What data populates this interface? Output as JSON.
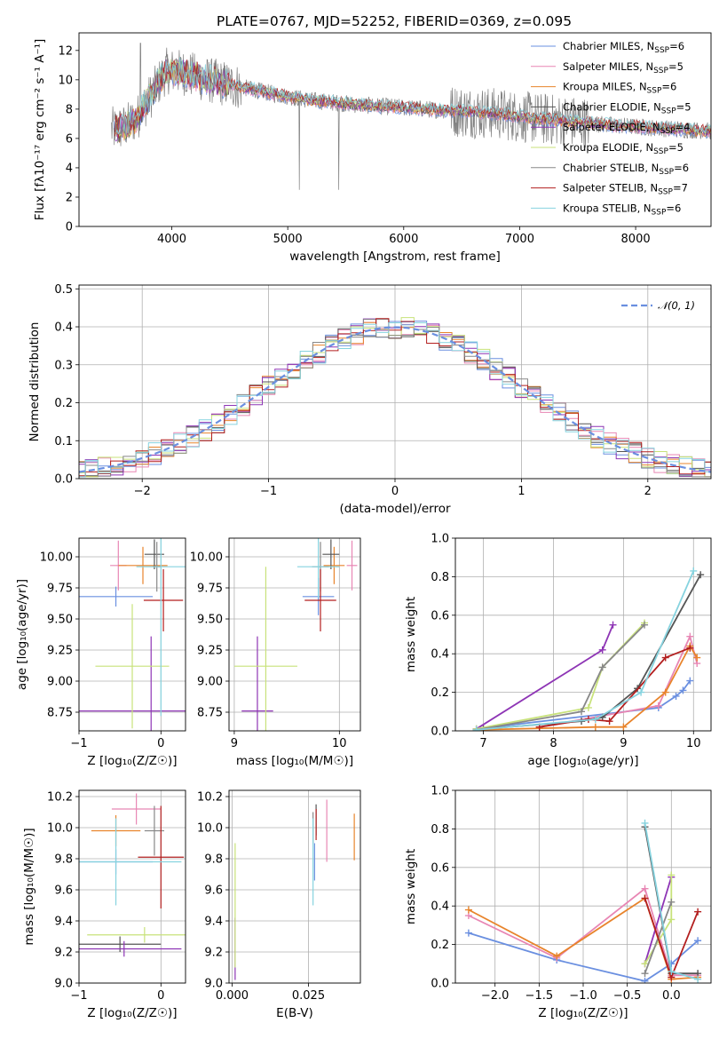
{
  "title": "PLATE=0767, MJD=52252, FIBERID=0369, z=0.095",
  "colors": [
    "#6a8fe0",
    "#e886b4",
    "#e8842c",
    "#555555",
    "#8e35b5",
    "#c8e27a",
    "#888888",
    "#b31f1f",
    "#86d3df"
  ],
  "chart_data": [
    {
      "id": "spectrum",
      "type": "line",
      "xlabel": "wavelength [Angstrom, rest frame]",
      "ylabel": "Flux [fλ10⁻¹⁷ erg cm⁻² s⁻¹ A⁻¹]",
      "xlim": [
        3200,
        8650
      ],
      "ylim": [
        0,
        13.2
      ],
      "xticks": [
        4000,
        5000,
        6000,
        7000,
        8000
      ],
      "yticks": [
        0,
        2,
        4,
        6,
        8,
        10,
        12
      ],
      "grid": false,
      "legend": "top-right",
      "series": [
        {
          "name": "Chabrier MILES, N_SSP=6"
        },
        {
          "name": "Salpeter MILES, N_SSP=5"
        },
        {
          "name": "Kroupa MILES, N_SSP=6"
        },
        {
          "name": "Chabrier ELODIE, N_SSP=5"
        },
        {
          "name": "Salpeter ELODIE, N_SSP=4"
        },
        {
          "name": "Kroupa ELODIE, N_SSP=5"
        },
        {
          "name": "Chabrier STELIB, N_SSP=6"
        },
        {
          "name": "Salpeter STELIB, N_SSP=7"
        },
        {
          "name": "Kroupa STELIB, N_SSP=6"
        }
      ],
      "continuum": {
        "x": [
          3500,
          3600,
          3700,
          3850,
          3950,
          4100,
          4300,
          4600,
          4900,
          5200,
          5600,
          6000,
          6400,
          6800,
          7100,
          7400,
          7800,
          8200,
          8650
        ],
        "y": [
          6.6,
          6.8,
          7.4,
          9.3,
          10.6,
          10.5,
          10.0,
          9.5,
          9.0,
          8.6,
          8.3,
          8.1,
          7.9,
          7.7,
          7.4,
          7.2,
          6.9,
          6.7,
          6.5
        ]
      }
    },
    {
      "id": "residuals",
      "type": "step",
      "xlabel": "(data-model)/error",
      "ylabel": "Normed distribution",
      "xlim": [
        -2.5,
        2.5
      ],
      "ylim": [
        0,
        0.51
      ],
      "xticks": [
        -2,
        -1,
        0,
        1,
        2
      ],
      "yticks": [
        0.0,
        0.1,
        0.2,
        0.3,
        0.4,
        0.5
      ],
      "grid": true,
      "legend": "top-right",
      "reference": {
        "name": "𝒩(0, 1)",
        "mean": 0,
        "sigma": 1
      }
    },
    {
      "id": "age-vs-Z",
      "type": "errorbar",
      "xlabel": "Z [log₁₀(Z/Z☉)]",
      "ylabel": "age  [log₁₀(age/yr)]",
      "xlim": [
        -1,
        0.3
      ],
      "ylim": [
        8.6,
        10.15
      ],
      "xticks": [
        -1,
        0
      ],
      "yticks": [
        8.75,
        9.0,
        9.25,
        9.5,
        9.75,
        10.0
      ],
      "points": [
        {
          "x": -0.55,
          "y": 9.68,
          "xerr": 0.45,
          "yerr": 0.08
        },
        {
          "x": -0.52,
          "y": 9.93,
          "xerr": 0.1,
          "yerr": 0.2
        },
        {
          "x": -0.22,
          "y": 9.93,
          "xerr": 0.3,
          "yerr": 0.15
        },
        {
          "x": -0.08,
          "y": 10.02,
          "xerr": 0.12,
          "yerr": 0.12
        },
        {
          "x": -0.12,
          "y": 8.76,
          "xerr": 0.88,
          "yerr": 0.6
        },
        {
          "x": -0.35,
          "y": 9.12,
          "xerr": 0.45,
          "yerr": 0.5
        },
        {
          "x": -0.05,
          "y": 9.92,
          "xerr": 0.05,
          "yerr": 0.2
        },
        {
          "x": 0.03,
          "y": 9.65,
          "xerr": 0.24,
          "yerr": 0.25
        },
        {
          "x": 0.0,
          "y": 9.92,
          "xerr": 0.3,
          "yerr": 1.2
        }
      ]
    },
    {
      "id": "age-vs-mass",
      "type": "errorbar",
      "xlabel": "mass [log₁₀(M/M☉)]",
      "ylabel": "",
      "xlim": [
        8.95,
        10.2
      ],
      "ylim": [
        8.6,
        10.15
      ],
      "xticks": [
        9,
        10
      ],
      "yticks": [
        8.75,
        9.0,
        9.25,
        9.5,
        9.75,
        10.0
      ],
      "points": [
        {
          "x": 9.8,
          "y": 9.68,
          "xerr": 0.15,
          "yerr": 0.15
        },
        {
          "x": 10.12,
          "y": 9.93,
          "xerr": 0.05,
          "yerr": 0.2
        },
        {
          "x": 9.95,
          "y": 9.93,
          "xerr": 0.1,
          "yerr": 0.15
        },
        {
          "x": 9.92,
          "y": 10.02,
          "xerr": 0.08,
          "yerr": 0.12
        },
        {
          "x": 9.22,
          "y": 8.76,
          "xerr": 0.15,
          "yerr": 0.6
        },
        {
          "x": 9.3,
          "y": 9.12,
          "xerr": 0.3,
          "yerr": 0.8
        },
        {
          "x": 9.82,
          "y": 9.92,
          "xerr": 0.08,
          "yerr": 0.2
        },
        {
          "x": 9.82,
          "y": 9.65,
          "xerr": 0.15,
          "yerr": 0.25
        },
        {
          "x": 9.8,
          "y": 9.92,
          "xerr": 0.2,
          "yerr": 0.25
        }
      ]
    },
    {
      "id": "mass-weight-vs-age",
      "type": "line",
      "xlabel": "age  [log₁₀(age/yr)]",
      "ylabel": "mass weight",
      "xlim": [
        6.6,
        10.25
      ],
      "ylim": [
        0,
        1.0
      ],
      "xticks": [
        7,
        8,
        9,
        10
      ],
      "yticks": [
        0.0,
        0.2,
        0.4,
        0.6,
        0.8,
        1.0
      ],
      "series": [
        {
          "x": [
            6.9,
            9.5,
            9.75,
            9.85,
            9.95
          ],
          "y": [
            0.01,
            0.12,
            0.18,
            0.21,
            0.26
          ]
        },
        {
          "x": [
            7.8,
            9.5,
            9.95,
            10.05
          ],
          "y": [
            0.02,
            0.13,
            0.49,
            0.35
          ]
        },
        {
          "x": [
            6.9,
            8.6,
            9.0,
            9.6,
            9.95,
            10.05
          ],
          "y": [
            0.005,
            0.02,
            0.02,
            0.2,
            0.44,
            0.38
          ]
        },
        {
          "x": [
            7.0,
            8.4,
            8.7,
            9.2,
            10.1
          ],
          "y": [
            0.01,
            0.05,
            0.07,
            0.22,
            0.81
          ]
        },
        {
          "x": [
            6.9,
            8.7,
            8.85
          ],
          "y": [
            0.01,
            0.42,
            0.55
          ]
        },
        {
          "x": [
            6.9,
            8.5,
            8.7,
            9.3
          ],
          "y": [
            0.01,
            0.12,
            0.33,
            0.56
          ]
        },
        {
          "x": [
            6.9,
            8.4,
            8.7,
            9.3
          ],
          "y": [
            0.005,
            0.1,
            0.33,
            0.55
          ]
        },
        {
          "x": [
            7.8,
            8.5,
            8.8,
            9.6,
            9.95
          ],
          "y": [
            0.02,
            0.06,
            0.05,
            0.38,
            0.43
          ]
        },
        {
          "x": [
            6.9,
            8.6,
            9.25,
            10.0
          ],
          "y": [
            0.005,
            0.06,
            0.2,
            0.83
          ]
        }
      ]
    },
    {
      "id": "mass-vs-Z",
      "type": "errorbar",
      "xlabel": "Z [log₁₀(Z/Z☉)]",
      "ylabel": "mass [log₁₀(M/M☉)]",
      "xlim": [
        -1,
        0.3
      ],
      "ylim": [
        9.0,
        10.24
      ],
      "xticks": [
        -1,
        0
      ],
      "yticks": [
        9.0,
        9.2,
        9.4,
        9.6,
        9.8,
        10.0,
        10.2
      ],
      "points": [
        {
          "x": -0.55,
          "y": 9.78,
          "xerr": 0.45,
          "yerr": 0.08
        },
        {
          "x": -0.3,
          "y": 10.12,
          "xerr": 0.3,
          "yerr": 0.1
        },
        {
          "x": -0.55,
          "y": 9.98,
          "xerr": 0.3,
          "yerr": 0.1
        },
        {
          "x": -0.5,
          "y": 9.25,
          "xerr": 0.5,
          "yerr": 0.05
        },
        {
          "x": -0.45,
          "y": 9.22,
          "xerr": 0.7,
          "yerr": 0.05
        },
        {
          "x": -0.2,
          "y": 9.31,
          "xerr": 0.7,
          "yerr": 0.05
        },
        {
          "x": -0.08,
          "y": 9.98,
          "xerr": 0.12,
          "yerr": 0.16
        },
        {
          "x": 0.0,
          "y": 9.81,
          "xerr": 0.28,
          "yerr": 0.33
        },
        {
          "x": -0.55,
          "y": 9.78,
          "xerr": 0.8,
          "yerr": 0.28
        }
      ]
    },
    {
      "id": "mass-vs-EBV",
      "type": "errorbar",
      "xlabel": "E(B-V)",
      "ylabel": "",
      "xlim": [
        -0.001,
        0.042
      ],
      "ylim": [
        9.0,
        10.24
      ],
      "xticks": [
        0.0,
        0.025
      ],
      "yticks": [
        9.0,
        9.2,
        9.4,
        9.6,
        9.8,
        10.0,
        10.2
      ],
      "points": [
        {
          "x": 0.027,
          "y": 9.78,
          "yerr": 0.12
        },
        {
          "x": 0.031,
          "y": 9.98,
          "yerr": 0.2
        },
        {
          "x": 0.04,
          "y": 9.94,
          "yerr": 0.15
        },
        {
          "x": 0.0275,
          "y": 10.05,
          "yerr": 0.1
        },
        {
          "x": 0.001,
          "y": 9.22,
          "yerr": 0.2
        },
        {
          "x": 0.001,
          "y": 9.5,
          "yerr": 0.4
        },
        {
          "x": 0.0265,
          "y": 10.0,
          "yerr": 0.1
        },
        {
          "x": 0.0275,
          "y": 10.02,
          "yerr": 0.1
        },
        {
          "x": 0.0265,
          "y": 9.78,
          "yerr": 0.28
        }
      ]
    },
    {
      "id": "mass-weight-vs-Z",
      "type": "line",
      "xlabel": "Z [log₁₀(Z/Z☉)]",
      "ylabel": "mass weight",
      "xlim": [
        -2.45,
        0.45
      ],
      "ylim": [
        0,
        1.0
      ],
      "xticks": [
        -2.0,
        -1.5,
        -1.0,
        -0.5,
        0.0
      ],
      "yticks": [
        0.0,
        0.2,
        0.4,
        0.6,
        0.8,
        1.0
      ],
      "series": [
        {
          "x": [
            -2.3,
            -1.3,
            -0.3,
            0.0,
            0.3
          ],
          "y": [
            0.26,
            0.12,
            0.01,
            0.1,
            0.22
          ]
        },
        {
          "x": [
            -2.3,
            -1.3,
            -0.3,
            0.0,
            0.3
          ],
          "y": [
            0.35,
            0.13,
            0.49,
            0.04,
            0.04
          ]
        },
        {
          "x": [
            -2.3,
            -1.3,
            -0.3,
            0.0,
            0.3
          ],
          "y": [
            0.38,
            0.14,
            0.44,
            0.02,
            0.03
          ]
        },
        {
          "x": [
            -0.3,
            0.0,
            0.3
          ],
          "y": [
            0.81,
            0.05,
            0.05
          ]
        },
        {
          "x": [
            -0.3,
            0.0
          ],
          "y": [
            0.1,
            0.55
          ]
        },
        {
          "x": [
            -0.3,
            0.0,
            0.0
          ],
          "y": [
            0.1,
            0.33,
            0.56
          ]
        },
        {
          "x": [
            -0.3,
            0.0
          ],
          "y": [
            0.05,
            0.42
          ]
        },
        {
          "x": [
            -0.3,
            0.0,
            0.3
          ],
          "y": [
            0.44,
            0.03,
            0.37
          ]
        },
        {
          "x": [
            -0.3,
            0.0,
            0.3
          ],
          "y": [
            0.83,
            0.06,
            0.02
          ]
        }
      ]
    }
  ]
}
